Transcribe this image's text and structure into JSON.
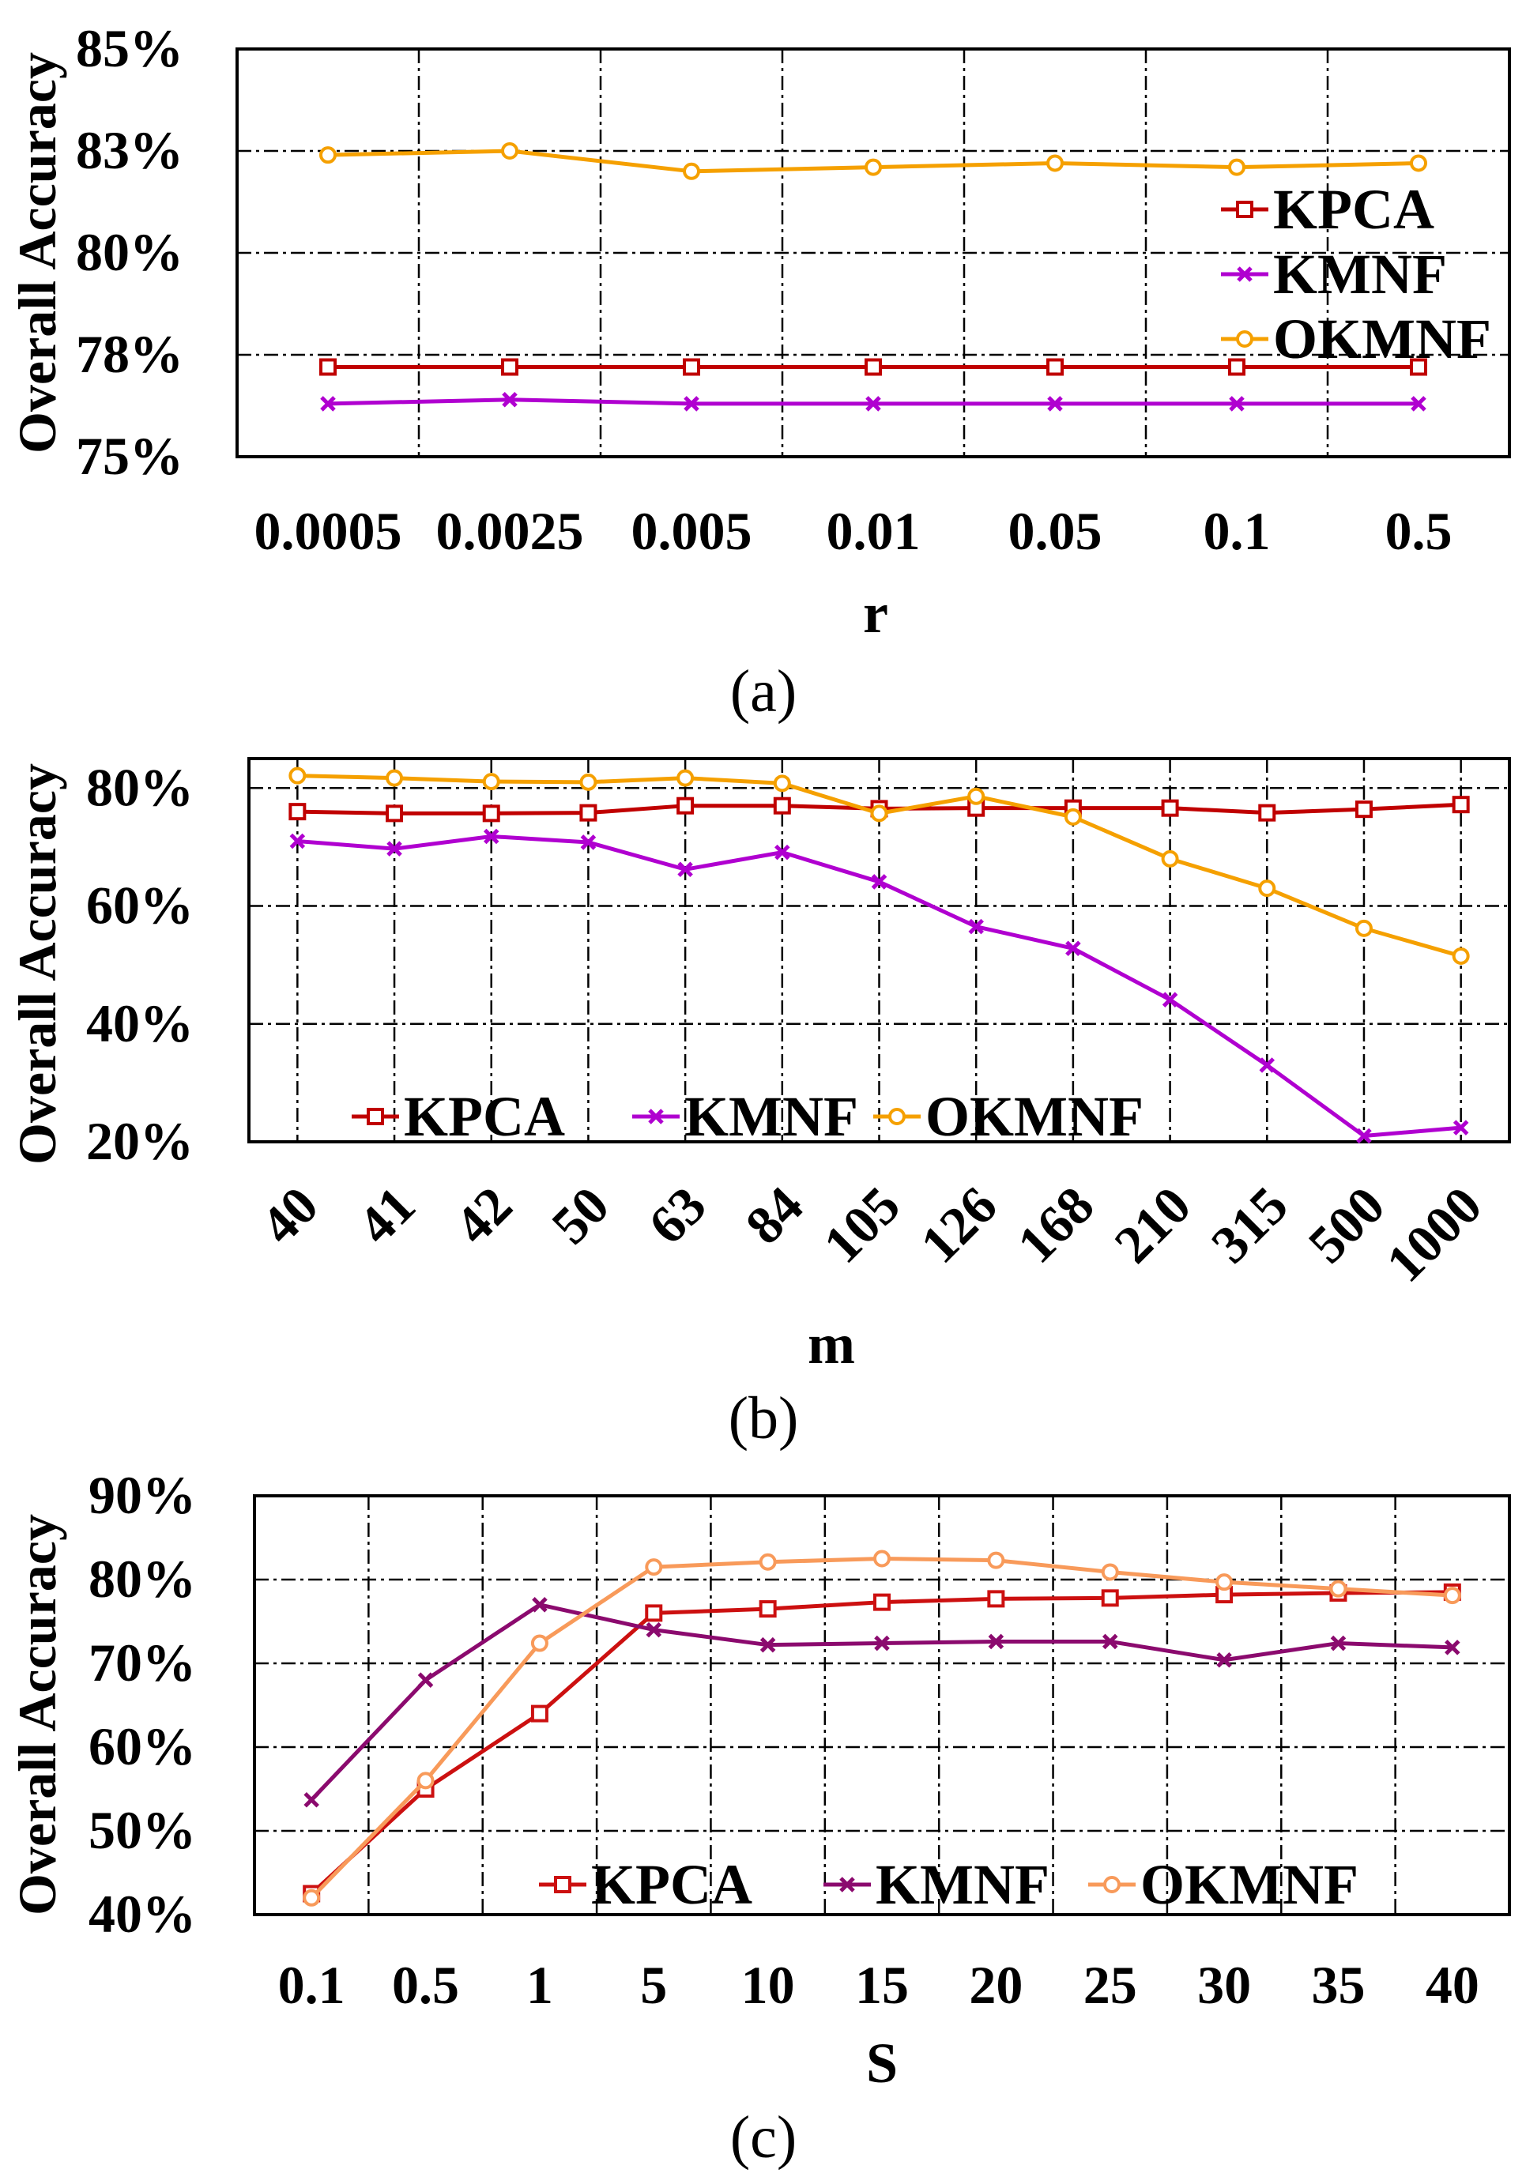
{
  "chart_data": [
    {
      "type": "line",
      "panel_label": "(a)",
      "xlabel": "r",
      "ylabel": "Overall  Accuracy",
      "categories": [
        "0.0005",
        "0.0025",
        "0.005",
        "0.01",
        "0.05",
        "0.1",
        "0.5"
      ],
      "tick_labels_y": [
        "75%",
        "78%",
        "80%",
        "83%",
        "85%"
      ],
      "ylim": [
        75,
        85
      ],
      "series": [
        {
          "name": "KPCA",
          "color": "#c00000",
          "marker": "square",
          "values": [
            77.2,
            77.2,
            77.2,
            77.2,
            77.2,
            77.2,
            77.2
          ]
        },
        {
          "name": "KMNF",
          "color": "#b000d0",
          "marker": "x",
          "values": [
            76.3,
            76.4,
            76.3,
            76.3,
            76.3,
            76.3,
            76.3
          ]
        },
        {
          "name": "OKMNF",
          "color": "#f5a000",
          "marker": "circle",
          "values": [
            82.4,
            82.5,
            82.0,
            82.1,
            82.2,
            82.1,
            82.2
          ]
        }
      ],
      "legend": "right"
    },
    {
      "type": "line",
      "panel_label": "(b)",
      "xlabel": "m",
      "ylabel": "Overall  Accuracy",
      "categories": [
        "40",
        "41",
        "42",
        "50",
        "63",
        "84",
        "105",
        "126",
        "168",
        "210",
        "315",
        "500",
        "1000"
      ],
      "tick_labels_y": [
        "20%",
        "40%",
        "60%",
        "80%"
      ],
      "ylim": [
        20,
        85
      ],
      "series": [
        {
          "name": "KPCA",
          "color": "#c00000",
          "marker": "square",
          "values": [
            76,
            75.7,
            75.7,
            75.8,
            77,
            77,
            76.5,
            76.6,
            76.6,
            76.6,
            75.8,
            76.4,
            77.2
          ]
        },
        {
          "name": "KMNF",
          "color": "#b000d0",
          "marker": "x",
          "values": [
            71,
            69.7,
            71.8,
            70.8,
            66.2,
            69.1,
            64.1,
            56.5,
            52.8,
            44.1,
            33,
            21,
            22.4
          ]
        },
        {
          "name": "OKMNF",
          "color": "#f5a000",
          "marker": "circle",
          "values": [
            82.1,
            81.7,
            81.1,
            81,
            81.7,
            80.8,
            75.7,
            78.6,
            75.1,
            68,
            63,
            56.2,
            51.5
          ]
        }
      ],
      "legend": "bottom-left"
    },
    {
      "type": "line",
      "panel_label": "(c)",
      "xlabel": "S",
      "ylabel": "Overall  Accuracy",
      "categories": [
        "0.1",
        "0.5",
        "1",
        "5",
        "10",
        "15",
        "20",
        "25",
        "30",
        "35",
        "40"
      ],
      "tick_labels_y": [
        "40%",
        "50%",
        "60%",
        "70%",
        "80%",
        "90%"
      ],
      "ylim": [
        40,
        90
      ],
      "series": [
        {
          "name": "KPCA",
          "color": "#cc1010",
          "marker": "square",
          "values": [
            42.5,
            55,
            64,
            76,
            76.5,
            77.3,
            77.7,
            77.8,
            78.2,
            78.4,
            78.5
          ]
        },
        {
          "name": "KMNF",
          "color": "#8b0a6e",
          "marker": "x",
          "values": [
            53.7,
            68,
            77,
            74,
            72.2,
            72.4,
            72.6,
            72.6,
            70.4,
            72.4,
            71.9
          ]
        },
        {
          "name": "OKMNF",
          "color": "#f89a5a",
          "marker": "circle",
          "values": [
            42,
            56,
            72.4,
            81.5,
            82.1,
            82.5,
            82.3,
            80.9,
            79.7,
            78.9,
            78.1
          ]
        }
      ],
      "legend": "bottom-right"
    }
  ]
}
